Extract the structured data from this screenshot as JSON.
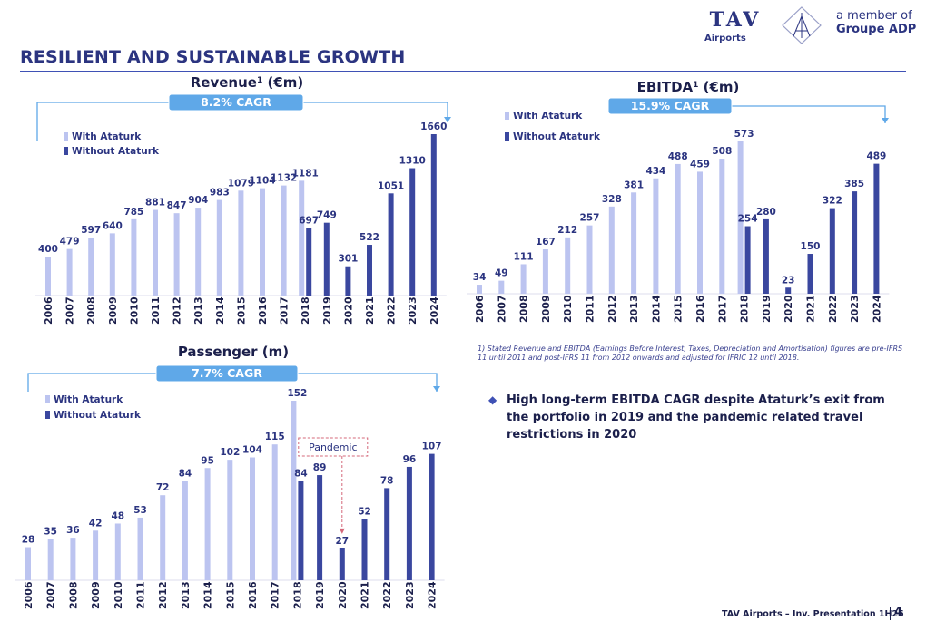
{
  "header": {
    "title": "RESILIENT AND SUSTAINABLE GROWTH",
    "logo_main": "TAV",
    "logo_sub": "Airports",
    "member_line1": "a member of",
    "member_line2": "Groupe ADP"
  },
  "colors": {
    "with_ataturk": "#bcc4f0",
    "without_ataturk": "#3a479f",
    "cagr_box": "#5fa8e8",
    "bracket": "#5fa8e8",
    "text": "#2b3480"
  },
  "chart_data": [
    {
      "id": "revenue",
      "type": "bar",
      "title": "Revenue",
      "title_sup": "1",
      "title_suffix": "(€m)",
      "cagr": "8.2% CAGR",
      "legend": [
        "With Ataturk",
        "Without Ataturk"
      ],
      "categories": [
        "2006",
        "2007",
        "2008",
        "2009",
        "2010",
        "2011",
        "2012",
        "2013",
        "2014",
        "2015",
        "2016",
        "2017",
        "2018",
        "2019",
        "2020",
        "2021",
        "2022",
        "2023",
        "2024"
      ],
      "series": [
        {
          "name": "With Ataturk",
          "values": [
            400,
            479,
            597,
            640,
            785,
            881,
            847,
            904,
            983,
            1079,
            1104,
            1132,
            1181,
            null,
            null,
            null,
            null,
            null,
            null
          ]
        },
        {
          "name": "Without Ataturk",
          "values": [
            null,
            null,
            null,
            null,
            null,
            null,
            null,
            null,
            null,
            null,
            null,
            null,
            697,
            749,
            301,
            522,
            1051,
            1310,
            1660
          ]
        }
      ],
      "ylim": [
        0,
        1660
      ]
    },
    {
      "id": "ebitda",
      "type": "bar",
      "title": "EBITDA",
      "title_sup": "1",
      "title_suffix": "(€m)",
      "cagr": "15.9% CAGR",
      "legend": [
        "With Ataturk",
        "Without Ataturk"
      ],
      "categories": [
        "2006",
        "2007",
        "2008",
        "2009",
        "2010",
        "2011",
        "2012",
        "2013",
        "2014",
        "2015",
        "2016",
        "2017",
        "2018",
        "2019",
        "2020",
        "2021",
        "2022",
        "2023",
        "2024"
      ],
      "series": [
        {
          "name": "With Ataturk",
          "values": [
            34,
            49,
            111,
            167,
            212,
            257,
            328,
            381,
            434,
            488,
            459,
            508,
            573,
            null,
            null,
            null,
            null,
            null,
            null
          ]
        },
        {
          "name": "Without Ataturk",
          "values": [
            null,
            null,
            null,
            null,
            null,
            null,
            null,
            null,
            null,
            null,
            null,
            null,
            254,
            280,
            23,
            150,
            322,
            385,
            489
          ]
        }
      ],
      "ylim": [
        0,
        573
      ]
    },
    {
      "id": "passenger",
      "type": "bar",
      "title": "Passenger",
      "title_sup": "",
      "title_suffix": "(m)",
      "cagr": "7.7% CAGR",
      "legend": [
        "With Ataturk",
        "Without Ataturk"
      ],
      "annotation": "Pandemic",
      "categories": [
        "2006",
        "2007",
        "2008",
        "2009",
        "2010",
        "2011",
        "2012",
        "2013",
        "2014",
        "2015",
        "2016",
        "2017",
        "2018",
        "2019",
        "2020",
        "2021",
        "2022",
        "2023",
        "2024"
      ],
      "series": [
        {
          "name": "With Ataturk",
          "values": [
            28,
            35,
            36,
            42,
            48,
            53,
            72,
            84,
            95,
            102,
            104,
            115,
            152,
            null,
            null,
            null,
            null,
            null,
            null
          ]
        },
        {
          "name": "Without Ataturk",
          "values": [
            null,
            null,
            null,
            null,
            null,
            null,
            null,
            null,
            null,
            null,
            null,
            null,
            84,
            89,
            27,
            52,
            78,
            96,
            107
          ]
        }
      ],
      "ylim": [
        0,
        152
      ]
    }
  ],
  "footnote": "1) Stated Revenue and EBITDA (Earnings Before Interest, Taxes, Depreciation and Amortisation) figures are pre-IFRS 11 until 2011 and post-IFRS 11 from 2012 onwards and adjusted for IFRIC 12 until 2018.",
  "bullet": "High long-term EBITDA CAGR despite Ataturk’s exit from the portfolio in 2019 and the pandemic related travel restrictions in 2020",
  "footer": {
    "text": "TAV Airports – Inv. Presentation 1H25",
    "page": "4"
  }
}
